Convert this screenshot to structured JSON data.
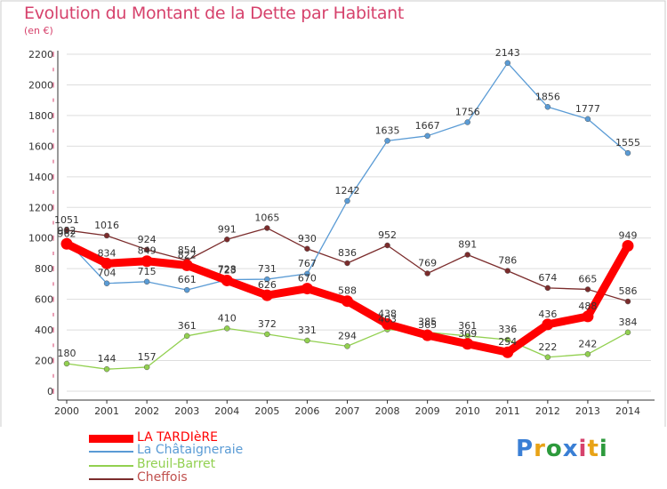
{
  "title": "Evolution du Montant de la Dette par Habitant",
  "subtitle": "(en €)",
  "logo": {
    "text": "Proxiti",
    "colors": [
      "#3a7fd5",
      "#e8a317",
      "#2d9a3c",
      "#3a7fd5",
      "#d6426c",
      "#e8a317",
      "#2d9a3c"
    ]
  },
  "colors": {
    "title": "#d6426c",
    "axis": "#333333",
    "grid": "#dddddd",
    "tick_mark": "#d6426c"
  },
  "chart_data": {
    "type": "line",
    "x": [
      2000,
      2001,
      2002,
      2003,
      2004,
      2005,
      2006,
      2007,
      2008,
      2009,
      2010,
      2011,
      2012,
      2013,
      2014
    ],
    "ylim": [
      0,
      2200
    ],
    "yticks": [
      0,
      200,
      400,
      600,
      800,
      1000,
      1200,
      1400,
      1600,
      1800,
      2000,
      2200
    ],
    "grid": "horizontal",
    "legend_placement": "bottom-left",
    "series": [
      {
        "name": "LA TARDIèRE",
        "color": "#ff0000",
        "legend_text_color": "#ff0000",
        "values": [
          962,
          834,
          849,
          822,
          723,
          626,
          670,
          588,
          438,
          365,
          309,
          254,
          436,
          488,
          949
        ],
        "labels": [
          "962",
          "834",
          "849",
          "822",
          "723",
          "626",
          "670",
          "588",
          "438",
          "365",
          "309",
          "254",
          "436",
          "488",
          "949"
        ]
      },
      {
        "name": "La Châtaigneraie",
        "color": "#5a9bd5",
        "legend_text_color": "#5a9bd5",
        "values": [
          982,
          704,
          715,
          661,
          728,
          731,
          767,
          1242,
          1635,
          1667,
          1756,
          2143,
          1856,
          1777,
          1555
        ],
        "labels": [
          "982",
          "704",
          "715",
          "661",
          "728",
          "731",
          "767",
          "1242",
          "1635",
          "1667",
          "1756",
          "2143",
          "1856",
          "1777",
          "1555"
        ]
      },
      {
        "name": "Breuil-Barret",
        "color": "#92d050",
        "legend_text_color": "#92d050",
        "values": [
          180,
          144,
          157,
          361,
          410,
          372,
          331,
          294,
          403,
          385,
          361,
          336,
          222,
          242,
          384
        ],
        "labels": [
          "180",
          "144",
          "157",
          "361",
          "410",
          "372",
          "331",
          "294",
          "403",
          "385",
          "361",
          "336",
          "222",
          "242",
          "384"
        ]
      },
      {
        "name": "Cheffois",
        "color": "#7b2c2c",
        "legend_text_color": "#c0504d",
        "values": [
          1051,
          1016,
          924,
          854,
          991,
          1065,
          930,
          836,
          952,
          769,
          891,
          786,
          674,
          665,
          586
        ],
        "labels": [
          "1051",
          "1016",
          "924",
          "854",
          "991",
          "1065",
          "930",
          "836",
          "952",
          "769",
          "891",
          "786",
          "674",
          "665",
          "586"
        ]
      }
    ]
  }
}
